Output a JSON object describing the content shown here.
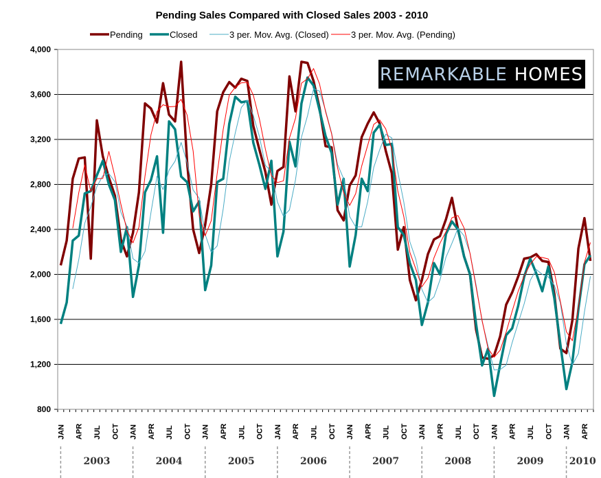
{
  "chart_data": {
    "type": "line",
    "title": "Pending Sales Compared with Closed Sales 2003 - 2010",
    "xlabel": "",
    "ylabel": "",
    "ylim": [
      800,
      4000
    ],
    "yticks": [
      800,
      1200,
      1600,
      2000,
      2400,
      2800,
      3200,
      3600,
      4000
    ],
    "ytick_labels": [
      "800",
      "1,200",
      "1,600",
      "2,000",
      "2,400",
      "2,800",
      "3,200",
      "3,600",
      "4,000"
    ],
    "grid": true,
    "legend_position": "top",
    "month_tick_labels": [
      "JAN",
      "APR",
      "JUL",
      "OCT"
    ],
    "years": [
      "2003",
      "2004",
      "2005",
      "2006",
      "2007",
      "2008",
      "2009",
      "2010"
    ],
    "start": "JAN 2003",
    "end": "MAY 2010",
    "series": [
      {
        "name": "Pending",
        "color": "#800000",
        "style": "thick",
        "values": [
          2080,
          2300,
          2850,
          3030,
          3040,
          2140,
          3370,
          3050,
          2860,
          2700,
          2310,
          2160,
          2370,
          2730,
          3520,
          3475,
          3350,
          3700,
          3420,
          3360,
          3890,
          3000,
          2400,
          2190,
          2440,
          2800,
          3450,
          3620,
          3710,
          3660,
          3740,
          3720,
          3320,
          3110,
          2910,
          2620,
          2920,
          2955,
          3760,
          3450,
          3890,
          3880,
          3720,
          3480,
          3140,
          3130,
          2570,
          2480,
          2790,
          2880,
          3220,
          3340,
          3440,
          3340,
          3100,
          2900,
          2220,
          2420,
          1950,
          1770,
          1950,
          2180,
          2310,
          2340,
          2490,
          2680,
          2400,
          2160,
          2000,
          1510,
          1260,
          1250,
          1280,
          1450,
          1730,
          1840,
          1980,
          2140,
          2150,
          2180,
          2120,
          2110,
          1830,
          1340,
          1300,
          1590,
          2230,
          2500,
          2120
        ]
      },
      {
        "name": "Closed",
        "color": "#008080",
        "style": "thick",
        "values": [
          1560,
          1750,
          2300,
          2345,
          2720,
          2740,
          2880,
          3010,
          2800,
          2660,
          2200,
          2420,
          1800,
          2080,
          2730,
          2840,
          3050,
          2370,
          3360,
          3290,
          2870,
          2820,
          2560,
          2650,
          1860,
          2080,
          2820,
          2850,
          3340,
          3580,
          3530,
          3540,
          3170,
          2975,
          2760,
          3010,
          2160,
          2380,
          3180,
          2960,
          3520,
          3750,
          3680,
          3460,
          3230,
          3080,
          2620,
          2850,
          2070,
          2350,
          2850,
          2740,
          3260,
          3330,
          3150,
          3160,
          2420,
          2350,
          2100,
          1950,
          1550,
          1750,
          2100,
          2000,
          2360,
          2470,
          2400,
          2160,
          2000,
          1560,
          1190,
          1340,
          920,
          1200,
          1460,
          1520,
          1720,
          1980,
          2140,
          2010,
          1850,
          2070,
          1790,
          1380,
          980,
          1220,
          1690,
          2090,
          2170
        ]
      },
      {
        "name": "3 per. Mov. Avg. (Closed)",
        "color": "#4bacc6",
        "style": "thin",
        "moving_average_of": "Closed",
        "period": 3
      },
      {
        "name": "3 per. Mov. Avg. (Pending)",
        "color": "#ff0000",
        "style": "thin",
        "moving_average_of": "Pending",
        "period": 3
      }
    ]
  },
  "logo": {
    "text_part1": "Remarkable",
    "text_part2": "Homes",
    "background": "#000000",
    "color_part1": "#b8d0e8",
    "color_part2": "#ffffff"
  }
}
